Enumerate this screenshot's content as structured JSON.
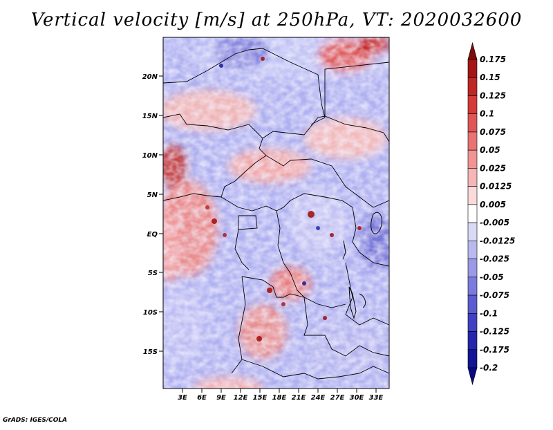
{
  "title": "Vertical velocity [m/s] at 250hPa, VT: 2020032600",
  "credit": "GrADS: IGES/COLA",
  "map": {
    "lat_labels": [
      "20N",
      "15N",
      "10N",
      "5N",
      "EQ",
      "5S",
      "10S",
      "15S"
    ],
    "lon_labels": [
      "3E",
      "6E",
      "9E",
      "12E",
      "15E",
      "18E",
      "21E",
      "24E",
      "27E",
      "30E",
      "33E"
    ]
  },
  "colorbar": {
    "labels": [
      "0.175",
      "0.15",
      "0.125",
      "0.1",
      "0.075",
      "0.05",
      "0.025",
      "0.0125",
      "0.005",
      "-0.005",
      "-0.0125",
      "-0.025",
      "-0.05",
      "-0.075",
      "-0.1",
      "-0.125",
      "-0.175",
      "-0.2"
    ],
    "colors": [
      "#7d0d0d",
      "#a41616",
      "#bf2626",
      "#d43a3a",
      "#e05656",
      "#e87373",
      "#f09494",
      "#f6b6b6",
      "#fbdada",
      "#ffffff",
      "#dadaf7",
      "#b9b9f0",
      "#9a9ae8",
      "#7b7bdf",
      "#5c5cd2",
      "#4040c2",
      "#2525ad",
      "#141496",
      "#0a0a80"
    ]
  }
}
